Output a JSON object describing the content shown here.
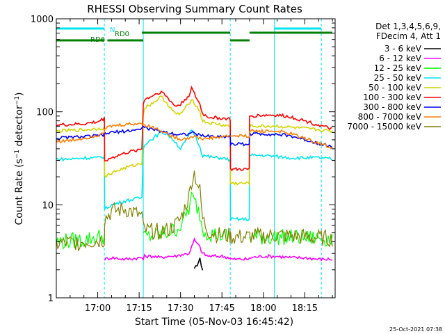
{
  "chart_data": {
    "type": "line",
    "title": "RHESSI Observing Summary Count Rates",
    "xlabel": "Start Time (05-Nov-03 16:45:42)",
    "ylabel": "Count Rate (s^-1 detector^-1)",
    "ylabel_parts": [
      "Count Rate (s",
      "−1",
      " detector",
      "−1",
      ")"
    ],
    "y_scale": "log",
    "ylim": [
      1,
      1000
    ],
    "xlim_minutes": [
      0,
      101
    ],
    "y_ticks": [
      1,
      10,
      100,
      1000
    ],
    "y_tick_labels": [
      "1",
      "10",
      "100",
      "1000"
    ],
    "x_ticks": [
      15,
      30,
      45,
      60,
      75,
      90
    ],
    "x_tick_labels": [
      "17:00",
      "17:15",
      "17:30",
      "17:45",
      "18:00",
      "18:15"
    ],
    "legend_position": "right",
    "info_lines": [
      "Det 1,3,4,5,6,9,",
      "FDecim 4, Att 1"
    ],
    "timestamp": "25-Oct-2021 07:38",
    "flags": [
      {
        "label": "N",
        "color": "#00e5ee",
        "segments": [
          [
            0,
            17.4
          ],
          [
            79,
            96
          ]
        ],
        "level": 0
      },
      {
        "label": "RD0",
        "color": "#007f00",
        "segments": [
          [
            31,
            63
          ],
          [
            70,
            100
          ]
        ],
        "level": 1
      },
      {
        "label": "RD6",
        "color": "#007f00",
        "segments": [
          [
            0,
            17.4
          ],
          [
            18.5,
            31.5
          ],
          [
            63,
            70
          ]
        ],
        "level": 2
      }
    ],
    "boundaries": {
      "solid": [
        31.5,
        79
      ],
      "dashed": [
        17.4,
        63,
        96
      ]
    },
    "x_samples": [
      0,
      5,
      10,
      15,
      17.4,
      17.5,
      20,
      25,
      31,
      31.5,
      32,
      35,
      38,
      40,
      43,
      45,
      48,
      49,
      50,
      52,
      53,
      55,
      58,
      60,
      63,
      63.1,
      66,
      69.9,
      70,
      75,
      80,
      85,
      90,
      95,
      100
    ],
    "series": [
      {
        "name": "3 - 6 keV",
        "color": "#000000",
        "values": [
          null,
          null,
          null,
          null,
          null,
          null,
          null,
          null,
          null,
          null,
          null,
          null,
          null,
          null,
          null,
          null,
          null,
          null,
          2.0,
          2.6,
          2.0,
          null,
          null,
          null,
          null,
          null,
          null,
          null,
          null,
          null,
          null,
          null,
          null,
          null,
          null
        ]
      },
      {
        "name": "6 - 12 keV",
        "color": "#ff00ff",
        "values": [
          null,
          null,
          null,
          null,
          null,
          2.6,
          2.7,
          2.6,
          2.7,
          2.6,
          2.8,
          2.8,
          2.7,
          2.8,
          2.8,
          2.9,
          3.0,
          3.5,
          4.2,
          3.5,
          3.0,
          2.8,
          2.8,
          2.8,
          2.7,
          2.6,
          2.6,
          2.6,
          2.7,
          2.8,
          2.8,
          2.7,
          2.7,
          2.6,
          2.6
        ]
      },
      {
        "name": "12 - 25 keV",
        "color": "#00ff00",
        "values": [
          4.0,
          4.1,
          4.2,
          4.5,
          4.6,
          null,
          null,
          null,
          null,
          4.5,
          4.5,
          4.6,
          4.8,
          5.0,
          5.4,
          6.0,
          9.0,
          12.0,
          11.0,
          8.0,
          5.5,
          5.0,
          4.8,
          4.7,
          4.6,
          null,
          null,
          null,
          4.5,
          4.5,
          4.5,
          4.5,
          4.4,
          4.4,
          4.3
        ]
      },
      {
        "name": "25 - 50 keV",
        "color": "#00e5ee",
        "values": [
          31,
          31,
          32,
          32,
          33,
          9,
          10,
          11,
          12,
          40,
          45,
          52,
          60,
          58,
          48,
          40,
          55,
          65,
          58,
          42,
          34,
          33,
          32,
          32,
          30,
          7,
          7,
          7,
          34,
          34,
          33,
          32,
          32,
          32,
          31
        ]
      },
      {
        "name": "50 - 100 keV",
        "color": "#d4d400",
        "values": [
          62,
          63,
          64,
          66,
          67,
          20,
          22,
          25,
          28,
          95,
          110,
          125,
          145,
          125,
          95,
          95,
          120,
          140,
          125,
          100,
          80,
          76,
          74,
          72,
          70,
          17,
          17,
          17,
          70,
          70,
          70,
          68,
          66,
          64,
          62
        ]
      },
      {
        "name": "100 - 300 keV",
        "color": "#ff0000",
        "values": [
          72,
          73,
          74,
          78,
          85,
          30,
          32,
          36,
          40,
          125,
          135,
          150,
          165,
          145,
          115,
          120,
          150,
          180,
          155,
          120,
          95,
          88,
          86,
          85,
          84,
          24,
          24,
          24,
          90,
          92,
          92,
          88,
          80,
          72,
          65
        ]
      },
      {
        "name": "300 - 800 keV",
        "color": "#0000ff",
        "values": [
          52,
          53,
          54,
          55,
          57,
          58,
          60,
          62,
          65,
          72,
          68,
          64,
          62,
          60,
          58,
          57,
          58,
          60,
          58,
          56,
          55,
          55,
          54,
          54,
          55,
          45,
          45,
          45,
          58,
          58,
          57,
          55,
          50,
          46,
          42
        ]
      },
      {
        "name": "800 - 7000 keV",
        "color": "#ff7f00",
        "values": [
          48,
          49,
          52,
          56,
          62,
          65,
          70,
          73,
          75,
          76,
          72,
          68,
          63,
          58,
          53,
          51,
          52,
          55,
          54,
          52,
          51,
          52,
          53,
          54,
          55,
          55,
          55,
          55,
          62,
          62,
          62,
          58,
          52,
          46,
          41
        ]
      },
      {
        "name": "7000 - 15000 keV",
        "color": "#7f7f00",
        "values": [
          3.8,
          3.9,
          4.0,
          4.1,
          4.2,
          7.0,
          8.5,
          9.0,
          7.5,
          5.5,
          5.3,
          5.2,
          5.2,
          5.3,
          6.0,
          7.0,
          12,
          18,
          22,
          14,
          7,
          5.2,
          4.8,
          4.7,
          4.6,
          4.5,
          4.5,
          4.5,
          4.6,
          4.6,
          4.7,
          4.6,
          4.5,
          4.4,
          4.3
        ]
      }
    ]
  }
}
